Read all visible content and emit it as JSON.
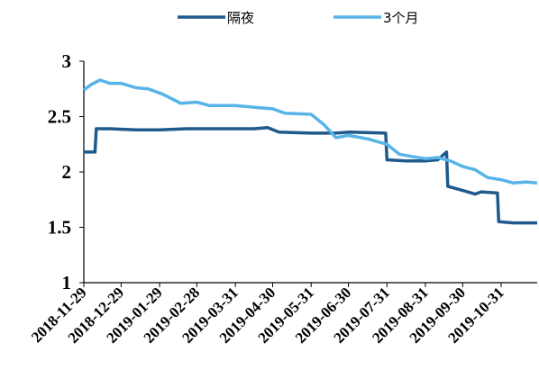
{
  "chart_data": {
    "type": "line",
    "title": "",
    "xlabel": "",
    "ylabel": "",
    "ylim": [
      1,
      3
    ],
    "yticks": [
      "1",
      "1.5",
      "2",
      "2.5",
      "3"
    ],
    "xticks": [
      "2018-11-29",
      "2018-12-29",
      "2019-01-29",
      "2019-02-28",
      "2019-03-31",
      "2019-04-30",
      "2019-05-31",
      "2019-06-30",
      "2019-07-31",
      "2019-08-31",
      "2019-09-30",
      "2019-10-31"
    ],
    "x_range": [
      "2018-11-29",
      "2019-11-29"
    ],
    "legend_position": "top-center",
    "grid": false,
    "series": [
      {
        "name": "隔夜",
        "color": "#1f5a8c",
        "points": [
          [
            "2018-11-29",
            2.18
          ],
          [
            "2018-12-08",
            2.18
          ],
          [
            "2018-12-09",
            2.39
          ],
          [
            "2018-12-20",
            2.39
          ],
          [
            "2019-01-10",
            2.38
          ],
          [
            "2019-01-29",
            2.38
          ],
          [
            "2019-02-20",
            2.39
          ],
          [
            "2019-03-20",
            2.39
          ],
          [
            "2019-04-15",
            2.39
          ],
          [
            "2019-04-26",
            2.4
          ],
          [
            "2019-05-05",
            2.36
          ],
          [
            "2019-05-31",
            2.35
          ],
          [
            "2019-06-20",
            2.35
          ],
          [
            "2019-07-01",
            2.36
          ],
          [
            "2019-07-30",
            2.35
          ],
          [
            "2019-07-31",
            2.11
          ],
          [
            "2019-08-15",
            2.1
          ],
          [
            "2019-08-31",
            2.1
          ],
          [
            "2019-09-10",
            2.11
          ],
          [
            "2019-09-15",
            2.16
          ],
          [
            "2019-09-17",
            2.18
          ],
          [
            "2019-09-18",
            1.87
          ],
          [
            "2019-10-01",
            1.83
          ],
          [
            "2019-10-10",
            1.8
          ],
          [
            "2019-10-15",
            1.82
          ],
          [
            "2019-10-28",
            1.81
          ],
          [
            "2019-10-29",
            1.55
          ],
          [
            "2019-11-10",
            1.54
          ],
          [
            "2019-11-29",
            1.54
          ]
        ]
      },
      {
        "name": "3个月",
        "color": "#58b4e8",
        "points": [
          [
            "2018-11-29",
            2.74
          ],
          [
            "2018-12-05",
            2.79
          ],
          [
            "2018-12-12",
            2.83
          ],
          [
            "2018-12-20",
            2.8
          ],
          [
            "2018-12-29",
            2.8
          ],
          [
            "2019-01-10",
            2.76
          ],
          [
            "2019-01-20",
            2.75
          ],
          [
            "2019-02-01",
            2.7
          ],
          [
            "2019-02-15",
            2.62
          ],
          [
            "2019-02-28",
            2.63
          ],
          [
            "2019-03-10",
            2.6
          ],
          [
            "2019-03-31",
            2.6
          ],
          [
            "2019-04-20",
            2.58
          ],
          [
            "2019-04-30",
            2.57
          ],
          [
            "2019-05-10",
            2.53
          ],
          [
            "2019-05-31",
            2.52
          ],
          [
            "2019-06-10",
            2.43
          ],
          [
            "2019-06-20",
            2.31
          ],
          [
            "2019-06-30",
            2.33
          ],
          [
            "2019-07-15",
            2.3
          ],
          [
            "2019-07-31",
            2.25
          ],
          [
            "2019-08-10",
            2.16
          ],
          [
            "2019-08-20",
            2.14
          ],
          [
            "2019-08-31",
            2.12
          ],
          [
            "2019-09-10",
            2.13
          ],
          [
            "2019-09-20",
            2.1
          ],
          [
            "2019-09-30",
            2.05
          ],
          [
            "2019-10-10",
            2.02
          ],
          [
            "2019-10-20",
            1.95
          ],
          [
            "2019-10-31",
            1.93
          ],
          [
            "2019-11-10",
            1.9
          ],
          [
            "2019-11-20",
            1.91
          ],
          [
            "2019-11-29",
            1.9
          ]
        ]
      }
    ]
  }
}
